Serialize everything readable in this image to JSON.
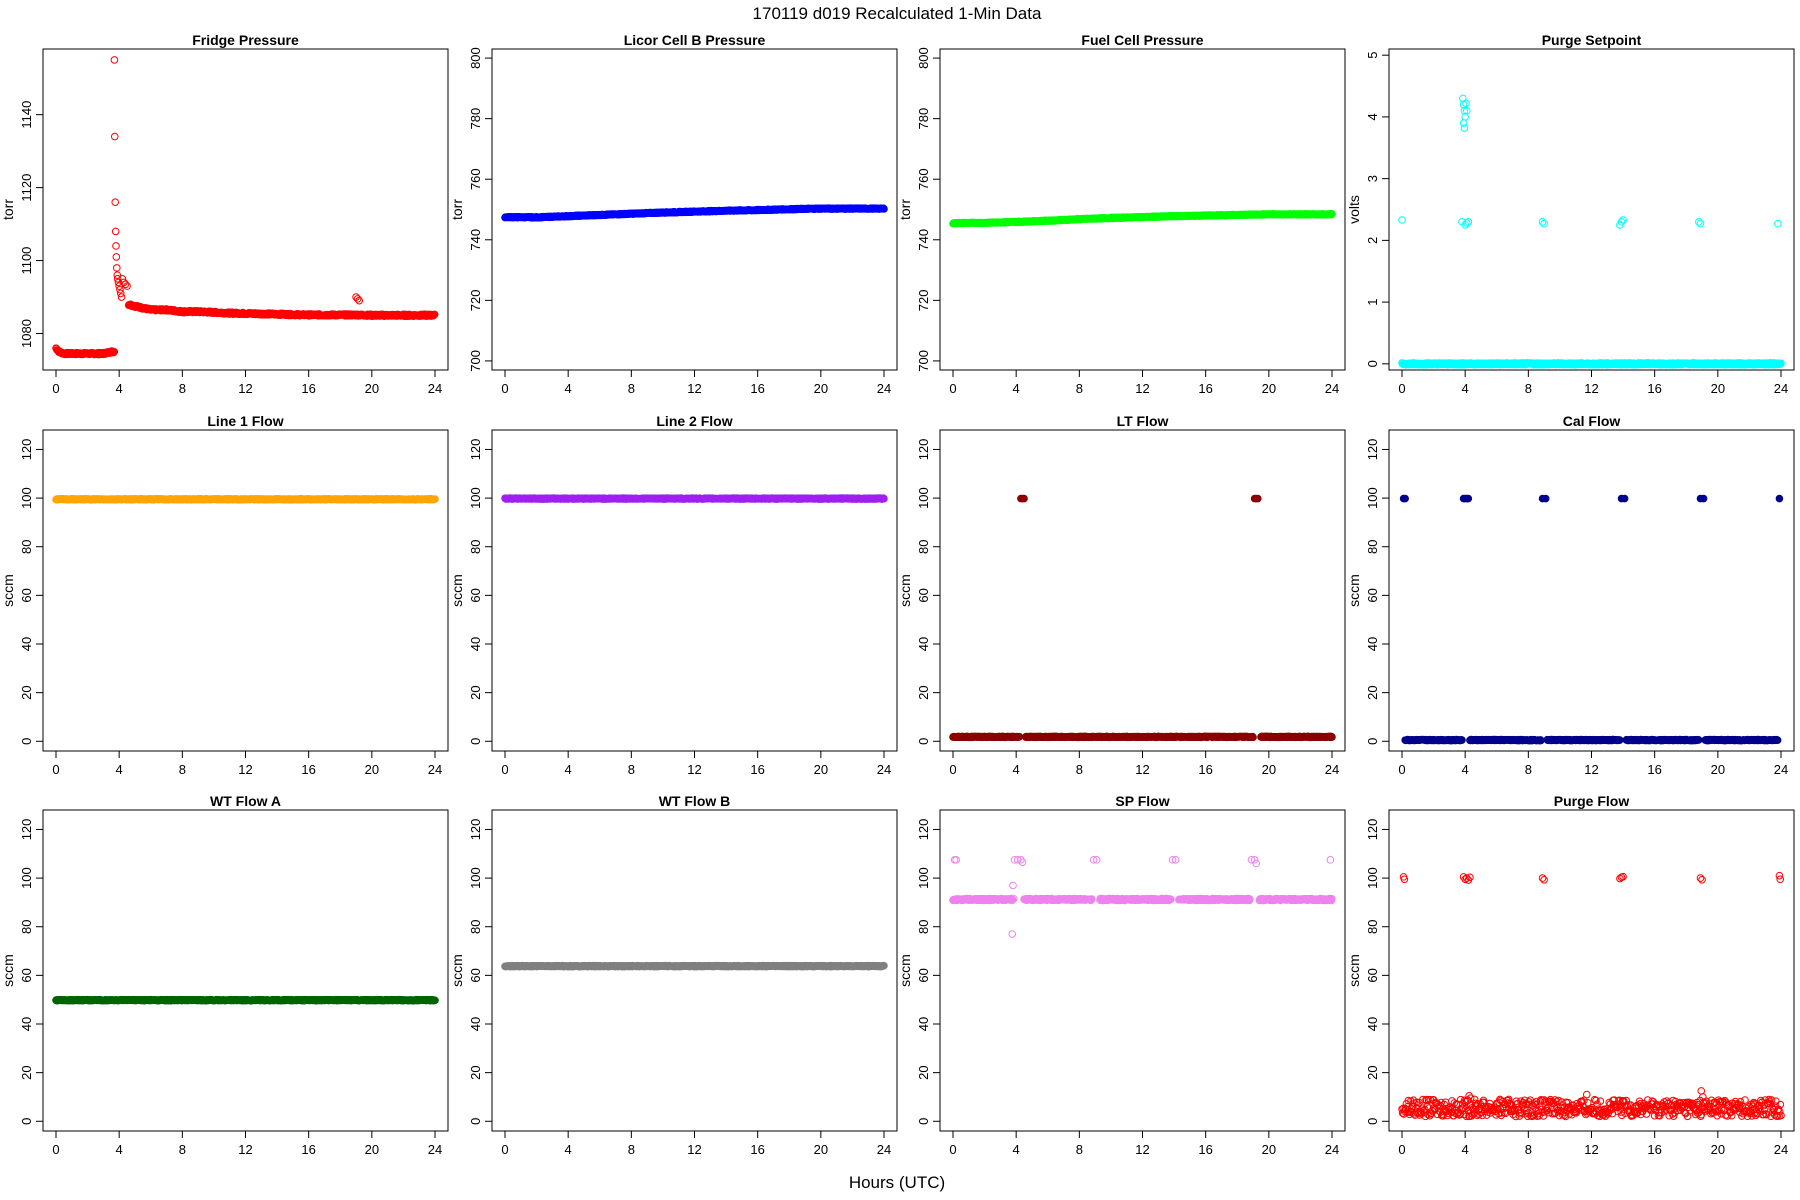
{
  "figure": {
    "title": "170119   d019   Recalculated 1-Min Data",
    "xlabel": "Hours (UTC)"
  },
  "chart_data": [
    {
      "type": "scatter",
      "title": "Fridge Pressure",
      "ylabel": "torr",
      "color": "#ff0000",
      "marker": "open",
      "xlim": [
        0,
        24
      ],
      "ylim": [
        1070,
        1158
      ],
      "yticks": [
        1080,
        1100,
        1120,
        1140
      ],
      "xticks": [
        0,
        4,
        8,
        12,
        16,
        20,
        24
      ],
      "segments": [
        {
          "x": [
            0,
            0.2,
            0.5,
            1,
            1.5,
            2,
            2.5,
            3,
            3.5,
            3.7
          ],
          "y": [
            1076,
            1075,
            1074.5,
            1074.5,
            1074.5,
            1074.5,
            1074.5,
            1074.5,
            1075,
            1075
          ]
        },
        {
          "x": [
            4.6,
            5,
            5.5,
            6,
            7,
            8,
            9,
            10,
            11,
            12,
            13,
            14,
            15,
            16,
            17,
            18,
            19,
            20,
            21,
            22,
            23,
            24
          ],
          "y": [
            1088,
            1087.5,
            1087,
            1086.5,
            1086.5,
            1086,
            1086,
            1085.8,
            1085.6,
            1085.5,
            1085.4,
            1085.3,
            1085.2,
            1085.1,
            1085.1,
            1085.1,
            1085.1,
            1085,
            1085,
            1085,
            1085,
            1085
          ]
        }
      ],
      "points": [
        {
          "x": 3.7,
          "y": 1155
        },
        {
          "x": 3.72,
          "y": 1134
        },
        {
          "x": 3.75,
          "y": 1116
        },
        {
          "x": 3.78,
          "y": 1108
        },
        {
          "x": 3.8,
          "y": 1104
        },
        {
          "x": 3.82,
          "y": 1101
        },
        {
          "x": 3.85,
          "y": 1098
        },
        {
          "x": 3.88,
          "y": 1096
        },
        {
          "x": 3.9,
          "y": 1095
        },
        {
          "x": 3.95,
          "y": 1094
        },
        {
          "x": 4.0,
          "y": 1093
        },
        {
          "x": 4.05,
          "y": 1092
        },
        {
          "x": 4.1,
          "y": 1091
        },
        {
          "x": 4.15,
          "y": 1090
        },
        {
          "x": 4.2,
          "y": 1095
        },
        {
          "x": 4.3,
          "y": 1094
        },
        {
          "x": 4.4,
          "y": 1093.5
        },
        {
          "x": 4.5,
          "y": 1093
        },
        {
          "x": 19.0,
          "y": 1090
        },
        {
          "x": 19.1,
          "y": 1089.5
        },
        {
          "x": 19.2,
          "y": 1089
        }
      ]
    },
    {
      "type": "scatter",
      "title": "Licor Cell B Pressure",
      "ylabel": "torr",
      "color": "#0000ff",
      "marker": "filled",
      "xlim": [
        0,
        24
      ],
      "ylim": [
        697,
        803
      ],
      "yticks": [
        700,
        720,
        740,
        760,
        780,
        800
      ],
      "xticks": [
        0,
        4,
        8,
        12,
        16,
        20,
        24
      ],
      "segments": [
        {
          "x": [
            0,
            2,
            4,
            6,
            8,
            10,
            12,
            14,
            16,
            18,
            20,
            22,
            24
          ],
          "y": [
            747.5,
            747.4,
            747.8,
            748.2,
            748.6,
            749.0,
            749.3,
            749.6,
            749.8,
            750.1,
            750.3,
            750.3,
            750.3
          ]
        }
      ],
      "points": []
    },
    {
      "type": "scatter",
      "title": "Fuel Cell Pressure",
      "ylabel": "torr",
      "color": "#00ff00",
      "marker": "filled",
      "xlim": [
        0,
        24
      ],
      "ylim": [
        697,
        803
      ],
      "yticks": [
        700,
        720,
        740,
        760,
        780,
        800
      ],
      "xticks": [
        0,
        4,
        8,
        12,
        16,
        20,
        24
      ],
      "segments": [
        {
          "x": [
            0,
            2,
            4,
            6,
            8,
            10,
            12,
            14,
            16,
            18,
            20,
            22,
            24
          ],
          "y": [
            745.5,
            745.6,
            745.9,
            746.3,
            746.8,
            747.2,
            747.5,
            747.8,
            748.0,
            748.2,
            748.4,
            748.4,
            748.4
          ]
        }
      ],
      "points": []
    },
    {
      "type": "scatter",
      "title": "Purge Setpoint",
      "ylabel": "volts",
      "color": "#00ffff",
      "marker": "open",
      "xlim": [
        0,
        24
      ],
      "ylim": [
        -0.1,
        5.1
      ],
      "yticks": [
        0,
        1,
        2,
        3,
        4,
        5
      ],
      "xticks": [
        0,
        4,
        8,
        12,
        16,
        20,
        24
      ],
      "segments": [
        {
          "x": [
            0,
            4,
            8,
            12,
            16,
            20,
            24
          ],
          "y": [
            0,
            0,
            0,
            0,
            0,
            0,
            0
          ]
        }
      ],
      "points": [
        {
          "x": 0,
          "y": 2.33
        },
        {
          "x": 3.8,
          "y": 2.3
        },
        {
          "x": 3.85,
          "y": 4.3
        },
        {
          "x": 3.9,
          "y": 4.2
        },
        {
          "x": 3.95,
          "y": 4.1
        },
        {
          "x": 4.0,
          "y": 4.0
        },
        {
          "x": 3.9,
          "y": 3.9
        },
        {
          "x": 3.95,
          "y": 3.82
        },
        {
          "x": 4.05,
          "y": 4.22
        },
        {
          "x": 4.1,
          "y": 4.1
        },
        {
          "x": 4.0,
          "y": 2.25
        },
        {
          "x": 4.1,
          "y": 2.28
        },
        {
          "x": 4.2,
          "y": 2.3
        },
        {
          "x": 8.9,
          "y": 2.3
        },
        {
          "x": 9.0,
          "y": 2.27
        },
        {
          "x": 13.8,
          "y": 2.25
        },
        {
          "x": 13.9,
          "y": 2.3
        },
        {
          "x": 14.0,
          "y": 2.33
        },
        {
          "x": 18.8,
          "y": 2.3
        },
        {
          "x": 18.9,
          "y": 2.27
        },
        {
          "x": 23.8,
          "y": 2.27
        }
      ]
    },
    {
      "type": "scatter",
      "title": "Line 1 Flow",
      "ylabel": "sccm",
      "color": "#ffa500",
      "marker": "filled",
      "xlim": [
        0,
        24
      ],
      "ylim": [
        -4,
        128
      ],
      "yticks": [
        0,
        20,
        40,
        60,
        80,
        100,
        120
      ],
      "xticks": [
        0,
        4,
        8,
        12,
        16,
        20,
        24
      ],
      "segments": [
        {
          "x": [
            0,
            24
          ],
          "y": [
            99.5,
            99.5
          ]
        }
      ],
      "points": []
    },
    {
      "type": "scatter",
      "title": "Line 2 Flow",
      "ylabel": "sccm",
      "color": "#a020f0",
      "marker": "filled",
      "xlim": [
        0,
        24
      ],
      "ylim": [
        -4,
        128
      ],
      "yticks": [
        0,
        20,
        40,
        60,
        80,
        100,
        120
      ],
      "xticks": [
        0,
        4,
        8,
        12,
        16,
        20,
        24
      ],
      "segments": [
        {
          "x": [
            0,
            24
          ],
          "y": [
            99.8,
            99.8
          ]
        }
      ],
      "points": []
    },
    {
      "type": "scatter",
      "title": "LT Flow",
      "ylabel": "sccm",
      "color": "#8b0000",
      "marker": "filled",
      "xlim": [
        0,
        24
      ],
      "ylim": [
        -4,
        128
      ],
      "yticks": [
        0,
        20,
        40,
        60,
        80,
        100,
        120
      ],
      "xticks": [
        0,
        4,
        8,
        12,
        16,
        20,
        24
      ],
      "segments": [
        {
          "x": [
            0,
            4.2
          ],
          "y": [
            1.8,
            1.8
          ]
        },
        {
          "x": 4.6,
          "y": 1.8,
          "x_end": 19.0
        },
        {
          "x": [
            19.5,
            24
          ],
          "y": [
            1.8,
            1.8
          ]
        }
      ],
      "points": [
        {
          "x": 4.3,
          "y": 99.8
        },
        {
          "x": 4.4,
          "y": 99.8
        },
        {
          "x": 4.5,
          "y": 99.8
        },
        {
          "x": 19.1,
          "y": 99.8
        },
        {
          "x": 19.2,
          "y": 99.8
        },
        {
          "x": 19.3,
          "y": 99.8
        }
      ]
    },
    {
      "type": "scatter",
      "title": "Cal Flow",
      "ylabel": "sccm",
      "color": "#00008b",
      "marker": "filled",
      "xlim": [
        0,
        24
      ],
      "ylim": [
        -4,
        128
      ],
      "yticks": [
        0,
        20,
        40,
        60,
        80,
        100,
        120
      ],
      "xticks": [
        0,
        4,
        8,
        12,
        16,
        20,
        24
      ],
      "segments": [
        {
          "x": [
            0.2,
            3.8
          ],
          "y": [
            0.5,
            0.5
          ]
        },
        {
          "x": [
            4.3,
            8.8
          ],
          "y": [
            0.5,
            0.5
          ]
        },
        {
          "x": [
            9.2,
            13.8
          ],
          "y": [
            0.5,
            0.5
          ]
        },
        {
          "x": [
            14.2,
            18.8
          ],
          "y": [
            0.5,
            0.5
          ]
        },
        {
          "x": [
            19.2,
            23.8
          ],
          "y": [
            0.5,
            0.5
          ]
        }
      ],
      "points": [
        {
          "x": 0.1,
          "y": 99.8
        },
        {
          "x": 0.2,
          "y": 99.8
        },
        {
          "x": 3.9,
          "y": 99.8
        },
        {
          "x": 4.0,
          "y": 99.8
        },
        {
          "x": 4.1,
          "y": 99.8
        },
        {
          "x": 4.2,
          "y": 99.8
        },
        {
          "x": 8.9,
          "y": 99.8
        },
        {
          "x": 9.1,
          "y": 99.8
        },
        {
          "x": 13.9,
          "y": 99.8
        },
        {
          "x": 14.1,
          "y": 99.8
        },
        {
          "x": 18.9,
          "y": 99.8
        },
        {
          "x": 19.1,
          "y": 99.8
        },
        {
          "x": 23.9,
          "y": 99.8
        }
      ]
    },
    {
      "type": "scatter",
      "title": "WT Flow A",
      "ylabel": "sccm",
      "color": "#006400",
      "marker": "filled",
      "xlim": [
        0,
        24
      ],
      "ylim": [
        -4,
        128
      ],
      "yticks": [
        0,
        20,
        40,
        60,
        80,
        100,
        120
      ],
      "xticks": [
        0,
        4,
        8,
        12,
        16,
        20,
        24
      ],
      "segments": [
        {
          "x": [
            0,
            24
          ],
          "y": [
            49.8,
            49.8
          ]
        }
      ],
      "points": []
    },
    {
      "type": "scatter",
      "title": "WT Flow B",
      "ylabel": "sccm",
      "color": "#808080",
      "marker": "filled",
      "xlim": [
        0,
        24
      ],
      "ylim": [
        -4,
        128
      ],
      "yticks": [
        0,
        20,
        40,
        60,
        80,
        100,
        120
      ],
      "xticks": [
        0,
        4,
        8,
        12,
        16,
        20,
        24
      ],
      "segments": [
        {
          "x": [
            0,
            24
          ],
          "y": [
            63.8,
            63.8
          ]
        }
      ],
      "points": []
    },
    {
      "type": "scatter",
      "title": "SP Flow",
      "ylabel": "sccm",
      "color": "#ee82ee",
      "marker": "open",
      "xlim": [
        0,
        24
      ],
      "ylim": [
        -4,
        128
      ],
      "yticks": [
        0,
        20,
        40,
        60,
        80,
        100,
        120
      ],
      "xticks": [
        0,
        4,
        8,
        12,
        16,
        20,
        24
      ],
      "segments": [
        {
          "x": [
            0,
            3.8
          ],
          "y": [
            91.2,
            91.2
          ]
        },
        {
          "x": [
            4.5,
            8.8
          ],
          "y": [
            91.2,
            91.2
          ]
        },
        {
          "x": [
            9.3,
            13.8
          ],
          "y": [
            91.2,
            91.2
          ]
        },
        {
          "x": [
            14.3,
            18.8
          ],
          "y": [
            91.2,
            91.2
          ]
        },
        {
          "x": [
            19.4,
            24
          ],
          "y": [
            91.2,
            91.2
          ]
        }
      ],
      "points": [
        {
          "x": 0.1,
          "y": 107.5
        },
        {
          "x": 0.2,
          "y": 107.5
        },
        {
          "x": 3.9,
          "y": 107.5
        },
        {
          "x": 4.1,
          "y": 107.5
        },
        {
          "x": 4.3,
          "y": 107.5
        },
        {
          "x": 4.4,
          "y": 106.5
        },
        {
          "x": 3.8,
          "y": 97.0
        },
        {
          "x": 3.75,
          "y": 77.0
        },
        {
          "x": 3.85,
          "y": 91.5
        },
        {
          "x": 8.9,
          "y": 107.5
        },
        {
          "x": 9.1,
          "y": 107.5
        },
        {
          "x": 13.9,
          "y": 107.5
        },
        {
          "x": 14.1,
          "y": 107.5
        },
        {
          "x": 18.9,
          "y": 107.5
        },
        {
          "x": 19.1,
          "y": 107.5
        },
        {
          "x": 19.2,
          "y": 106.0
        },
        {
          "x": 23.9,
          "y": 107.5
        }
      ]
    },
    {
      "type": "scatter",
      "title": "Purge Flow",
      "ylabel": "sccm",
      "color": "#ff0000",
      "marker": "open",
      "xlim": [
        0,
        24
      ],
      "ylim": [
        -4,
        128
      ],
      "yticks": [
        0,
        20,
        40,
        60,
        80,
        100,
        120
      ],
      "xticks": [
        0,
        4,
        8,
        12,
        16,
        20,
        24
      ],
      "segments": [],
      "noise_band": {
        "x": [
          0,
          24
        ],
        "y_center": 5.5,
        "y_spread": 3.5
      },
      "points": [
        {
          "x": 0.1,
          "y": 100.5
        },
        {
          "x": 0.15,
          "y": 99.5
        },
        {
          "x": 3.9,
          "y": 100.5
        },
        {
          "x": 4.0,
          "y": 99.5
        },
        {
          "x": 4.1,
          "y": 100.0
        },
        {
          "x": 4.2,
          "y": 99.2
        },
        {
          "x": 4.3,
          "y": 100.3
        },
        {
          "x": 8.9,
          "y": 100.0
        },
        {
          "x": 9.0,
          "y": 99.3
        },
        {
          "x": 13.8,
          "y": 99.8
        },
        {
          "x": 13.9,
          "y": 100.3
        },
        {
          "x": 14.0,
          "y": 100.6
        },
        {
          "x": 18.9,
          "y": 100.0
        },
        {
          "x": 19.0,
          "y": 99.3
        },
        {
          "x": 23.9,
          "y": 101.0
        },
        {
          "x": 23.95,
          "y": 99.5
        },
        {
          "x": 4.25,
          "y": 10.5
        },
        {
          "x": 4.35,
          "y": 9.5
        },
        {
          "x": 18.95,
          "y": 12.5
        },
        {
          "x": 19.05,
          "y": 10.0
        },
        {
          "x": 11.7,
          "y": 11.0
        }
      ]
    }
  ]
}
